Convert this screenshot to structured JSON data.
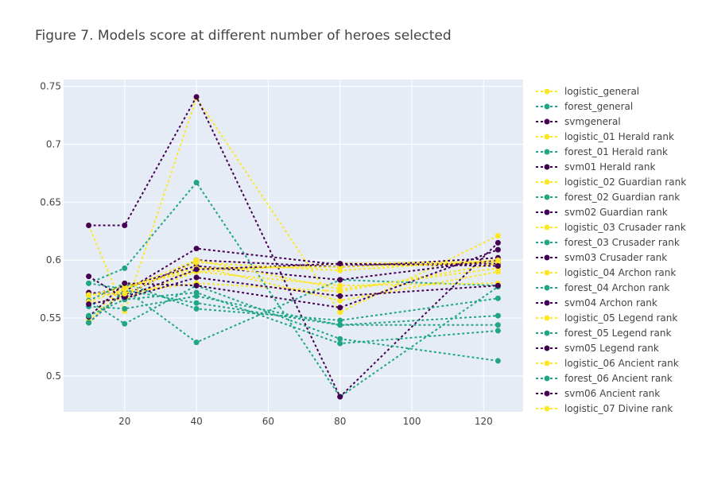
{
  "chart_data": {
    "type": "line",
    "title": "Figure 7. Models score at different number of heroes selected",
    "xlabel": "",
    "ylabel": "",
    "x": [
      10,
      20,
      40,
      80,
      124
    ],
    "xlim": [
      3,
      131
    ],
    "ylim": [
      0.469,
      0.756
    ],
    "xticks": [
      20,
      40,
      60,
      80,
      100,
      120
    ],
    "yticks": [
      0.5,
      0.55,
      0.6,
      0.65,
      0.7,
      0.75
    ],
    "xtick_labels": [
      "20",
      "40",
      "60",
      "80",
      "100",
      "120"
    ],
    "ytick_labels": [
      "0.5",
      "0.55",
      "0.6",
      "0.65",
      "0.7",
      "0.75"
    ],
    "grid": true,
    "legend_position": "right",
    "colors": {
      "logistic": "#fde725",
      "forest": "#21a685",
      "svm": "#440154",
      "plot_bg": "#e5ecf6",
      "grid": "#ffffff",
      "text": "#444444"
    },
    "series": [
      {
        "name": "logistic_general",
        "family": "logistic",
        "values": [
          0.63,
          0.556,
          0.74,
          0.555,
          0.621
        ]
      },
      {
        "name": "forest_general",
        "family": "forest",
        "values": [
          0.58,
          0.593,
          0.667,
          0.482,
          0.577
        ]
      },
      {
        "name": "svmgeneral",
        "family": "svm",
        "values": [
          0.63,
          0.63,
          0.741,
          0.482,
          0.615
        ]
      },
      {
        "name": "logistic_01 Herald rank",
        "family": "logistic",
        "values": [
          0.57,
          0.575,
          0.595,
          0.565,
          0.59
        ]
      },
      {
        "name": "forest_01 Herald rank",
        "family": "forest",
        "values": [
          0.56,
          0.558,
          0.569,
          0.544,
          0.544
        ]
      },
      {
        "name": "svm01 Herald rank",
        "family": "svm",
        "values": [
          0.572,
          0.57,
          0.6,
          0.594,
          0.602
        ]
      },
      {
        "name": "logistic_02 Guardian rank",
        "family": "logistic",
        "values": [
          0.548,
          0.572,
          0.58,
          0.573,
          0.597
        ]
      },
      {
        "name": "forest_02 Guardian rank",
        "family": "forest",
        "values": [
          0.565,
          0.545,
          0.578,
          0.532,
          0.513
        ]
      },
      {
        "name": "svm02 Guardian rank",
        "family": "svm",
        "values": [
          0.546,
          0.573,
          0.61,
          0.596,
          0.597
        ]
      },
      {
        "name": "logistic_03 Crusader rank",
        "family": "logistic",
        "values": [
          0.563,
          0.567,
          0.59,
          0.597,
          0.599
        ]
      },
      {
        "name": "forest_03 Crusader rank",
        "family": "forest",
        "values": [
          0.58,
          0.575,
          0.529,
          0.583,
          0.578
        ]
      },
      {
        "name": "svm03 Crusader rank",
        "family": "svm",
        "values": [
          0.57,
          0.577,
          0.595,
          0.583,
          0.6
        ]
      },
      {
        "name": "logistic_04 Archon rank",
        "family": "logistic",
        "values": [
          0.569,
          0.578,
          0.59,
          0.578,
          0.58
        ]
      },
      {
        "name": "forest_04 Archon rank",
        "family": "forest",
        "values": [
          0.565,
          0.58,
          0.558,
          0.548,
          0.567
        ]
      },
      {
        "name": "svm04 Archon rank",
        "family": "svm",
        "values": [
          0.586,
          0.567,
          0.585,
          0.569,
          0.578
        ]
      },
      {
        "name": "logistic_05 Legend rank",
        "family": "logistic",
        "values": [
          0.551,
          0.576,
          0.593,
          0.594,
          0.598
        ]
      },
      {
        "name": "forest_05 Legend rank",
        "family": "forest",
        "values": [
          0.546,
          0.574,
          0.563,
          0.544,
          0.552
        ]
      },
      {
        "name": "svm05 Legend rank",
        "family": "svm",
        "values": [
          0.551,
          0.58,
          0.578,
          0.559,
          0.609
        ]
      },
      {
        "name": "logistic_06 Ancient rank",
        "family": "logistic",
        "values": [
          0.564,
          0.575,
          0.6,
          0.575,
          0.593
        ]
      },
      {
        "name": "forest_06 Ancient rank",
        "family": "forest",
        "values": [
          0.552,
          0.566,
          0.572,
          0.528,
          0.539
        ]
      },
      {
        "name": "svm06 Ancient rank",
        "family": "svm",
        "values": [
          0.562,
          0.568,
          0.592,
          0.597,
          0.595
        ]
      },
      {
        "name": "logistic_07 Divine rank",
        "family": "logistic",
        "values": [
          0.57,
          0.571,
          0.598,
          0.591,
          0.6
        ]
      }
    ]
  }
}
